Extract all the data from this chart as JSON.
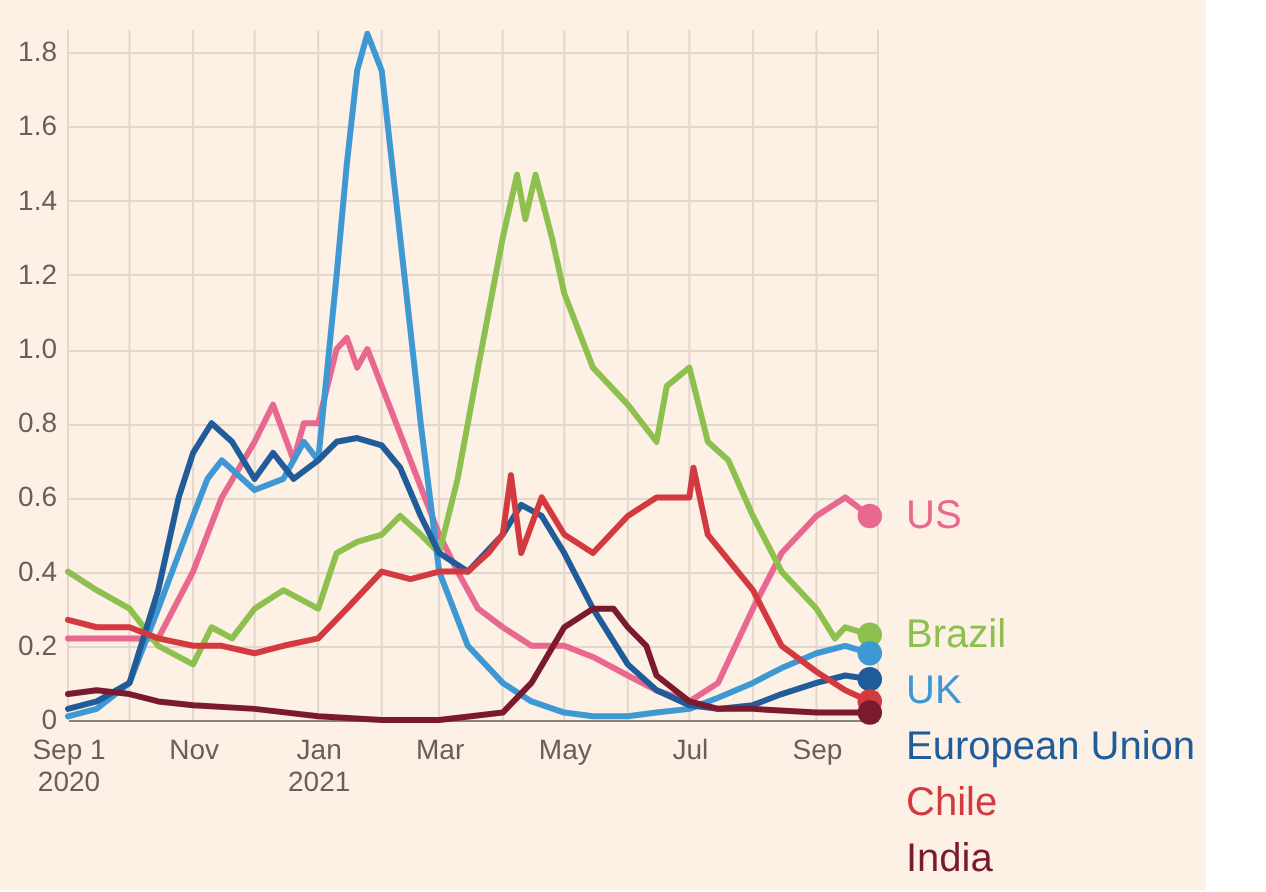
{
  "chart_data": {
    "type": "line",
    "xlim": [
      "2020-09-01",
      "2021-10-01"
    ],
    "xticks": [
      {
        "value": "2020-09-01",
        "label": "Sep 1\n2020"
      },
      {
        "value": "2020-10-01",
        "label": null
      },
      {
        "value": "2020-11-01",
        "label": "Nov"
      },
      {
        "value": "2020-12-01",
        "label": null
      },
      {
        "value": "2021-01-01",
        "label": "Jan\n2021"
      },
      {
        "value": "2021-02-01",
        "label": null
      },
      {
        "value": "2021-03-01",
        "label": "Mar"
      },
      {
        "value": "2021-04-01",
        "label": null
      },
      {
        "value": "2021-05-01",
        "label": "May"
      },
      {
        "value": "2021-06-01",
        "label": null
      },
      {
        "value": "2021-07-01",
        "label": "Jul"
      },
      {
        "value": "2021-08-01",
        "label": null
      },
      {
        "value": "2021-09-01",
        "label": "Sep"
      },
      {
        "value": "2021-10-01",
        "label": null
      }
    ],
    "ylim": [
      0,
      1.86
    ],
    "yticks": [
      0,
      0.2,
      0.4,
      0.6,
      0.8,
      {
        "value": 1,
        "label": "1.0"
      },
      1.2,
      1.4,
      1.6,
      1.8
    ],
    "grid": true,
    "legend": "right",
    "series": [
      {
        "name": "US",
        "color": "#e8688f",
        "x": [
          "2020-09-01",
          "2020-09-15",
          "2020-10-01",
          "2020-10-15",
          "2020-11-01",
          "2020-11-15",
          "2020-12-01",
          "2020-12-10",
          "2020-12-20",
          "2020-12-25",
          "2021-01-01",
          "2021-01-10",
          "2021-01-15",
          "2021-01-20",
          "2021-01-25",
          "2021-02-01",
          "2021-02-15",
          "2021-03-01",
          "2021-03-10",
          "2021-03-20",
          "2021-04-01",
          "2021-04-15",
          "2021-05-01",
          "2021-05-15",
          "2021-06-01",
          "2021-06-15",
          "2021-07-01",
          "2021-07-15",
          "2021-08-01",
          "2021-08-15",
          "2021-09-01",
          "2021-09-15",
          "2021-09-27"
        ],
        "values": [
          0.22,
          0.22,
          0.22,
          0.22,
          0.4,
          0.6,
          0.75,
          0.85,
          0.7,
          0.8,
          0.8,
          1.0,
          1.03,
          0.95,
          1.0,
          0.9,
          0.7,
          0.5,
          0.4,
          0.3,
          0.25,
          0.2,
          0.2,
          0.17,
          0.12,
          0.08,
          0.05,
          0.1,
          0.3,
          0.45,
          0.55,
          0.6,
          0.55
        ]
      },
      {
        "name": "Brazil",
        "color": "#8dc04f",
        "x": [
          "2020-09-01",
          "2020-09-15",
          "2020-10-01",
          "2020-10-15",
          "2020-11-01",
          "2020-11-10",
          "2020-11-20",
          "2020-12-01",
          "2020-12-15",
          "2021-01-01",
          "2021-01-10",
          "2021-01-20",
          "2021-02-01",
          "2021-02-10",
          "2021-02-20",
          "2021-03-01",
          "2021-03-10",
          "2021-03-20",
          "2021-04-01",
          "2021-04-08",
          "2021-04-12",
          "2021-04-17",
          "2021-04-25",
          "2021-05-01",
          "2021-05-15",
          "2021-06-01",
          "2021-06-15",
          "2021-06-20",
          "2021-07-01",
          "2021-07-10",
          "2021-07-20",
          "2021-08-01",
          "2021-08-15",
          "2021-09-01",
          "2021-09-10",
          "2021-09-15",
          "2021-09-27"
        ],
        "values": [
          0.4,
          0.35,
          0.3,
          0.2,
          0.15,
          0.25,
          0.22,
          0.3,
          0.35,
          0.3,
          0.45,
          0.48,
          0.5,
          0.55,
          0.5,
          0.45,
          0.65,
          0.95,
          1.3,
          1.47,
          1.35,
          1.47,
          1.3,
          1.15,
          0.95,
          0.85,
          0.75,
          0.9,
          0.95,
          0.75,
          0.7,
          0.55,
          0.4,
          0.3,
          0.22,
          0.25,
          0.23
        ]
      },
      {
        "name": "UK",
        "color": "#3d98d3",
        "x": [
          "2020-09-01",
          "2020-09-15",
          "2020-10-01",
          "2020-10-15",
          "2020-11-01",
          "2020-11-08",
          "2020-11-15",
          "2020-12-01",
          "2020-12-15",
          "2020-12-25",
          "2021-01-01",
          "2021-01-10",
          "2021-01-15",
          "2021-01-20",
          "2021-01-25",
          "2021-02-01",
          "2021-02-10",
          "2021-02-20",
          "2021-03-01",
          "2021-03-15",
          "2021-04-01",
          "2021-04-15",
          "2021-05-01",
          "2021-05-15",
          "2021-06-01",
          "2021-06-15",
          "2021-07-01",
          "2021-07-15",
          "2021-08-01",
          "2021-08-15",
          "2021-09-01",
          "2021-09-15",
          "2021-09-27"
        ],
        "values": [
          0.01,
          0.03,
          0.1,
          0.3,
          0.55,
          0.65,
          0.7,
          0.62,
          0.65,
          0.75,
          0.7,
          1.2,
          1.5,
          1.75,
          1.85,
          1.75,
          1.3,
          0.8,
          0.4,
          0.2,
          0.1,
          0.05,
          0.02,
          0.01,
          0.01,
          0.02,
          0.03,
          0.06,
          0.1,
          0.14,
          0.18,
          0.2,
          0.18
        ]
      },
      {
        "name": "European Union",
        "color": "#1f5c99",
        "x": [
          "2020-09-01",
          "2020-09-15",
          "2020-10-01",
          "2020-10-15",
          "2020-10-25",
          "2020-11-01",
          "2020-11-10",
          "2020-11-20",
          "2020-12-01",
          "2020-12-10",
          "2020-12-20",
          "2021-01-01",
          "2021-01-10",
          "2021-01-20",
          "2021-02-01",
          "2021-02-10",
          "2021-02-20",
          "2021-03-01",
          "2021-03-15",
          "2021-04-01",
          "2021-04-10",
          "2021-04-20",
          "2021-05-01",
          "2021-05-15",
          "2021-06-01",
          "2021-06-15",
          "2021-07-01",
          "2021-07-15",
          "2021-08-01",
          "2021-08-15",
          "2021-09-01",
          "2021-09-15",
          "2021-09-27"
        ],
        "values": [
          0.03,
          0.05,
          0.1,
          0.35,
          0.6,
          0.72,
          0.8,
          0.75,
          0.65,
          0.72,
          0.65,
          0.7,
          0.75,
          0.76,
          0.74,
          0.68,
          0.55,
          0.45,
          0.4,
          0.5,
          0.58,
          0.55,
          0.45,
          0.3,
          0.15,
          0.08,
          0.04,
          0.03,
          0.04,
          0.07,
          0.1,
          0.12,
          0.11
        ]
      },
      {
        "name": "Chile",
        "color": "#d23a3f",
        "x": [
          "2020-09-01",
          "2020-09-15",
          "2020-10-01",
          "2020-10-15",
          "2020-11-01",
          "2020-11-15",
          "2020-12-01",
          "2020-12-15",
          "2021-01-01",
          "2021-01-15",
          "2021-02-01",
          "2021-02-15",
          "2021-03-01",
          "2021-03-15",
          "2021-03-25",
          "2021-04-01",
          "2021-04-05",
          "2021-04-10",
          "2021-04-20",
          "2021-05-01",
          "2021-05-15",
          "2021-06-01",
          "2021-06-15",
          "2021-07-01",
          "2021-07-03",
          "2021-07-10",
          "2021-08-01",
          "2021-08-15",
          "2021-09-01",
          "2021-09-15",
          "2021-09-27"
        ],
        "values": [
          0.27,
          0.25,
          0.25,
          0.22,
          0.2,
          0.2,
          0.18,
          0.2,
          0.22,
          0.3,
          0.4,
          0.38,
          0.4,
          0.4,
          0.45,
          0.5,
          0.66,
          0.45,
          0.6,
          0.5,
          0.45,
          0.55,
          0.6,
          0.6,
          0.68,
          0.5,
          0.35,
          0.2,
          0.13,
          0.08,
          0.05
        ]
      },
      {
        "name": "India",
        "color": "#7a1a2e",
        "x": [
          "2020-09-01",
          "2020-09-15",
          "2020-10-01",
          "2020-10-15",
          "2020-11-01",
          "2020-12-01",
          "2021-01-01",
          "2021-02-01",
          "2021-03-01",
          "2021-04-01",
          "2021-04-15",
          "2021-05-01",
          "2021-05-15",
          "2021-05-25",
          "2021-06-01",
          "2021-06-10",
          "2021-06-15",
          "2021-07-01",
          "2021-07-15",
          "2021-08-01",
          "2021-09-01",
          "2021-09-27"
        ],
        "values": [
          0.07,
          0.08,
          0.07,
          0.05,
          0.04,
          0.03,
          0.01,
          0.0,
          0.0,
          0.02,
          0.1,
          0.25,
          0.3,
          0.3,
          0.25,
          0.2,
          0.12,
          0.05,
          0.03,
          0.03,
          0.02,
          0.02
        ]
      }
    ]
  }
}
